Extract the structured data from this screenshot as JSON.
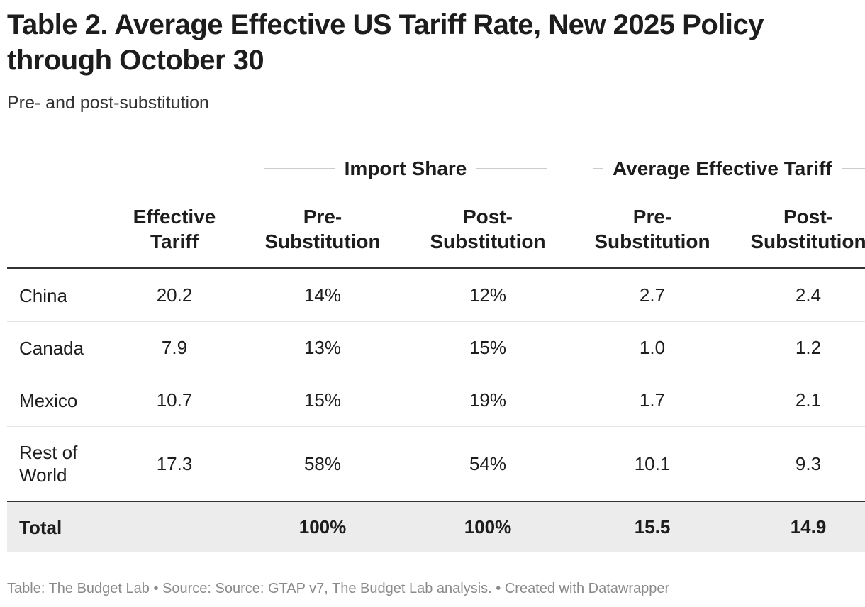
{
  "title": "Table 2. Average Effective US Tariff Rate, New 2025 Policy through October 30",
  "subtitle": "Pre- and post-substitution",
  "chart_data": {
    "type": "table",
    "spanning_headers": [
      "Import Share",
      "Average Effective Tariff"
    ],
    "columns": [
      "",
      "Effective Tariff",
      "Pre-Substitution",
      "Post-Substitution",
      "Pre-Substitution",
      "Post-Substitution"
    ],
    "column_header_lines": [
      [
        "",
        ""
      ],
      [
        "Effective",
        "Tariff"
      ],
      [
        "Pre-",
        "Substitution"
      ],
      [
        "Post-",
        "Substitution"
      ],
      [
        "Pre-",
        "Substitution"
      ],
      [
        "Post-",
        "Substitution"
      ]
    ],
    "rows": [
      [
        "China",
        "20.2",
        "14%",
        "12%",
        "2.7",
        "2.4"
      ],
      [
        "Canada",
        "7.9",
        "13%",
        "15%",
        "1.0",
        "1.2"
      ],
      [
        "Mexico",
        "10.7",
        "15%",
        "19%",
        "1.7",
        "2.1"
      ],
      [
        "Rest of World",
        "17.3",
        "58%",
        "54%",
        "10.1",
        "9.3"
      ]
    ],
    "total": [
      "Total",
      "",
      "100%",
      "100%",
      "15.5",
      "14.9"
    ]
  },
  "footer": "Table: The Budget Lab • Source: Source: GTAP v7, The Budget Lab analysis. • Created with Datawrapper"
}
